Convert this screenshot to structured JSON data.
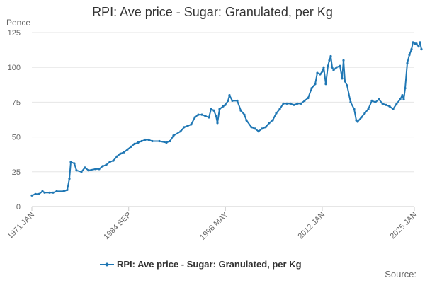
{
  "title": "RPI: Ave price - Sugar: Granulated, per Kg",
  "source_label": "Source:",
  "colors": {
    "series": "#1f77b4",
    "grid": "#e6e6e6",
    "axis": "#cccccc"
  },
  "chart_data": {
    "type": "line",
    "title": "RPI: Ave price - Sugar: Granulated, per Kg",
    "ylabel": "Pence",
    "ylim": [
      0,
      125
    ],
    "yticks": [
      0,
      25,
      50,
      75,
      100,
      125
    ],
    "xticks": [
      {
        "label": "1971 JAN",
        "t": 1971.0
      },
      {
        "label": "1984 SEP",
        "t": 1984.67
      },
      {
        "label": "1998 MAY",
        "t": 1998.33
      },
      {
        "label": "2012 JAN",
        "t": 2012.0
      },
      {
        "label": "2025 JAN",
        "t": 2025.0
      }
    ],
    "xlim": [
      1971.0,
      2025.0
    ],
    "grid": true,
    "legend_position": "bottom",
    "series": [
      {
        "name": "RPI: Ave price - Sugar: Granulated, per Kg",
        "points": [
          [
            1971.0,
            8
          ],
          [
            1971.5,
            9
          ],
          [
            1972.0,
            9
          ],
          [
            1972.5,
            11
          ],
          [
            1972.8,
            10
          ],
          [
            1973.5,
            10
          ],
          [
            1974.0,
            10
          ],
          [
            1974.5,
            11
          ],
          [
            1975.5,
            11
          ],
          [
            1976.0,
            12
          ],
          [
            1976.3,
            20
          ],
          [
            1976.5,
            32
          ],
          [
            1977.0,
            31
          ],
          [
            1977.3,
            26
          ],
          [
            1978.0,
            25
          ],
          [
            1978.5,
            28
          ],
          [
            1979.0,
            26
          ],
          [
            1980.0,
            27
          ],
          [
            1980.5,
            27
          ],
          [
            1981.0,
            29
          ],
          [
            1981.5,
            30
          ],
          [
            1982.0,
            32
          ],
          [
            1982.5,
            33
          ],
          [
            1983.0,
            36
          ],
          [
            1983.5,
            38
          ],
          [
            1984.0,
            39
          ],
          [
            1984.5,
            41
          ],
          [
            1985.0,
            43
          ],
          [
            1985.5,
            45
          ],
          [
            1986.0,
            46
          ],
          [
            1986.5,
            47
          ],
          [
            1987.0,
            48
          ],
          [
            1987.5,
            48
          ],
          [
            1988.0,
            47
          ],
          [
            1989.0,
            47
          ],
          [
            1990.0,
            46
          ],
          [
            1990.5,
            47
          ],
          [
            1991.0,
            51
          ],
          [
            1992.0,
            54
          ],
          [
            1992.5,
            57
          ],
          [
            1993.0,
            58
          ],
          [
            1993.5,
            59
          ],
          [
            1994.0,
            64
          ],
          [
            1994.5,
            66
          ],
          [
            1995.0,
            66
          ],
          [
            1995.5,
            65
          ],
          [
            1996.0,
            64
          ],
          [
            1996.3,
            70
          ],
          [
            1996.7,
            69
          ],
          [
            1997.0,
            65
          ],
          [
            1997.2,
            60
          ],
          [
            1997.5,
            70
          ],
          [
            1998.0,
            72
          ],
          [
            1998.3,
            73
          ],
          [
            1998.7,
            76
          ],
          [
            1998.9,
            80
          ],
          [
            1999.3,
            76
          ],
          [
            2000.0,
            76
          ],
          [
            2000.5,
            69
          ],
          [
            2001.0,
            66
          ],
          [
            2001.3,
            62
          ],
          [
            2002.0,
            57
          ],
          [
            2002.5,
            56
          ],
          [
            2003.0,
            54
          ],
          [
            2003.5,
            56
          ],
          [
            2004.0,
            57
          ],
          [
            2004.5,
            60
          ],
          [
            2005.0,
            62
          ],
          [
            2005.5,
            67
          ],
          [
            2006.0,
            70
          ],
          [
            2006.5,
            74
          ],
          [
            2007.0,
            74
          ],
          [
            2007.5,
            74
          ],
          [
            2008.0,
            73
          ],
          [
            2008.5,
            74
          ],
          [
            2009.0,
            74
          ],
          [
            2009.5,
            76
          ],
          [
            2010.0,
            78
          ],
          [
            2010.5,
            85
          ],
          [
            2011.0,
            88
          ],
          [
            2011.3,
            96
          ],
          [
            2011.7,
            95
          ],
          [
            2012.0,
            97
          ],
          [
            2012.2,
            100
          ],
          [
            2012.5,
            88
          ],
          [
            2012.8,
            101
          ],
          [
            2013.0,
            105
          ],
          [
            2013.2,
            108
          ],
          [
            2013.4,
            100
          ],
          [
            2013.6,
            98
          ],
          [
            2014.0,
            100
          ],
          [
            2014.5,
            101
          ],
          [
            2014.8,
            92
          ],
          [
            2015.0,
            105
          ],
          [
            2015.2,
            90
          ],
          [
            2015.5,
            87
          ],
          [
            2016.0,
            75
          ],
          [
            2016.5,
            70
          ],
          [
            2016.8,
            62
          ],
          [
            2017.0,
            61
          ],
          [
            2017.5,
            64
          ],
          [
            2018.0,
            67
          ],
          [
            2018.5,
            70
          ],
          [
            2019.0,
            76
          ],
          [
            2019.5,
            75
          ],
          [
            2020.0,
            77
          ],
          [
            2020.5,
            74
          ],
          [
            2021.0,
            73
          ],
          [
            2021.5,
            72
          ],
          [
            2022.0,
            70
          ],
          [
            2022.5,
            74
          ],
          [
            2023.0,
            77
          ],
          [
            2023.3,
            80
          ],
          [
            2023.5,
            77
          ],
          [
            2023.7,
            85
          ],
          [
            2024.0,
            103
          ],
          [
            2024.3,
            109
          ],
          [
            2024.6,
            113
          ],
          [
            2024.8,
            118
          ],
          [
            2025.1,
            117
          ],
          [
            2025.3,
            117
          ],
          [
            2025.6,
            115
          ],
          [
            2025.8,
            118
          ],
          [
            2026.0,
            113
          ]
        ]
      }
    ]
  }
}
